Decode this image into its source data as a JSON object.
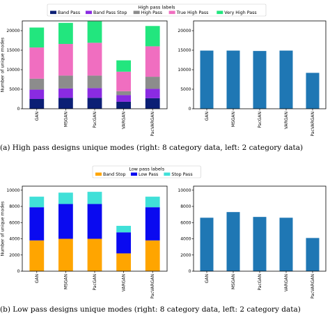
{
  "captions": {
    "a": "(a)   High pass designs unique modes (right: 8 category data, left: 2 category data)",
    "b": "(b)   Low pass designs unique modes (right: 8 category data, left: 2 category data)"
  },
  "chart_data": [
    {
      "id": "a-left",
      "type": "bar",
      "stacked": true,
      "categories": [
        "GAN",
        "MSGAN",
        "PacGAN",
        "VARGAN",
        "PacVARGAN"
      ],
      "legend_title": "High pass labels",
      "legend_position": "top",
      "series": [
        {
          "name": "Band Pass",
          "color": "#0b1f75",
          "values": [
            2500,
            2800,
            2800,
            1800,
            2700
          ]
        },
        {
          "name": "Band Pass Stop",
          "color": "#8a2be2",
          "values": [
            2400,
            2400,
            2500,
            1700,
            2400
          ]
        },
        {
          "name": "High Pass",
          "color": "#8c8c8c",
          "values": [
            2800,
            3300,
            3200,
            1000,
            3100
          ]
        },
        {
          "name": "True High Pass",
          "color": "#f06ec0",
          "values": [
            8000,
            8100,
            8400,
            5000,
            7800
          ]
        },
        {
          "name": "Very High Pass",
          "color": "#22e67e",
          "values": [
            5100,
            5400,
            5500,
            2900,
            5200
          ]
        }
      ],
      "ylabel": "Number of unique modes",
      "xlabel": "",
      "ylim": [
        0,
        22500
      ],
      "yticks": [
        0,
        5000,
        10000,
        15000,
        20000
      ],
      "ytick_labels": [
        "0",
        "5000",
        "10000",
        "15000",
        "20000"
      ]
    },
    {
      "id": "a-right",
      "type": "bar",
      "categories": [
        "GAN",
        "MSGAN",
        "PacGAN",
        "VARGAN",
        "PacVARGAN"
      ],
      "values": [
        14900,
        14900,
        14800,
        14900,
        9200
      ],
      "color": "#1f77b4",
      "ylim": [
        0,
        22500
      ],
      "yticks": [
        0,
        5000,
        10000,
        15000,
        20000
      ],
      "ytick_labels": [
        "0",
        "5000",
        "10000",
        "15000",
        "20000"
      ]
    },
    {
      "id": "b-left",
      "type": "bar",
      "stacked": true,
      "categories": [
        "GAN",
        "MSGAN",
        "PacGAN",
        "VARGAN",
        "PacVARGAN"
      ],
      "legend_title": "Low pass labels",
      "legend_position": "top",
      "series": [
        {
          "name": "Band Stop",
          "color": "#ffa500",
          "values": [
            3800,
            4000,
            4000,
            2200,
            3800
          ]
        },
        {
          "name": "Low Pass",
          "color": "#0a0af0",
          "values": [
            4100,
            4300,
            4300,
            2600,
            4100
          ]
        },
        {
          "name": "Stop Pass",
          "color": "#40e0d8",
          "values": [
            1300,
            1400,
            1500,
            800,
            1300
          ]
        }
      ],
      "ylabel": "Number of unique modes",
      "xlabel": "",
      "ylim": [
        0,
        10500
      ],
      "yticks": [
        0,
        2000,
        4000,
        6000,
        8000,
        10000
      ],
      "ytick_labels": [
        "0",
        "2000",
        "4000",
        "6000",
        "8000",
        "10000"
      ]
    },
    {
      "id": "b-right",
      "type": "bar",
      "categories": [
        "GAN",
        "MSGAN",
        "PacGAN",
        "VARGAN",
        "PacVARGAN"
      ],
      "values": [
        6600,
        7300,
        6700,
        6600,
        4100
      ],
      "color": "#1f77b4",
      "ylim": [
        0,
        10500
      ],
      "yticks": [
        0,
        2000,
        4000,
        6000,
        8000,
        10000
      ],
      "ytick_labels": [
        "0",
        "2000",
        "4000",
        "6000",
        "8000",
        "10000"
      ]
    }
  ]
}
